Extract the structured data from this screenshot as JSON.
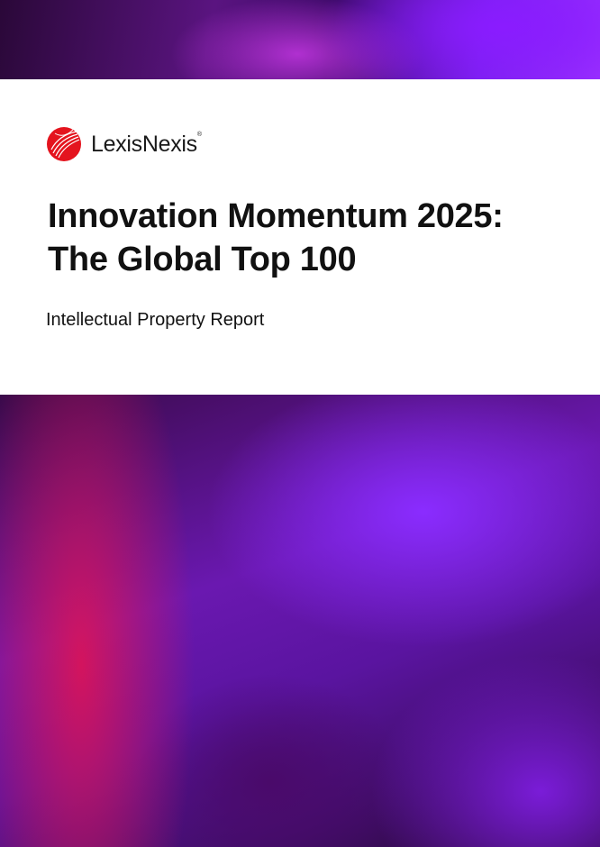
{
  "brand": {
    "name": "LexisNexis",
    "mark": "®",
    "color": "#e4141e"
  },
  "title_lines": [
    "Innovation Momentum 2025:",
    "The Global Top 100"
  ],
  "subtitle": "Intellectual Property Report"
}
